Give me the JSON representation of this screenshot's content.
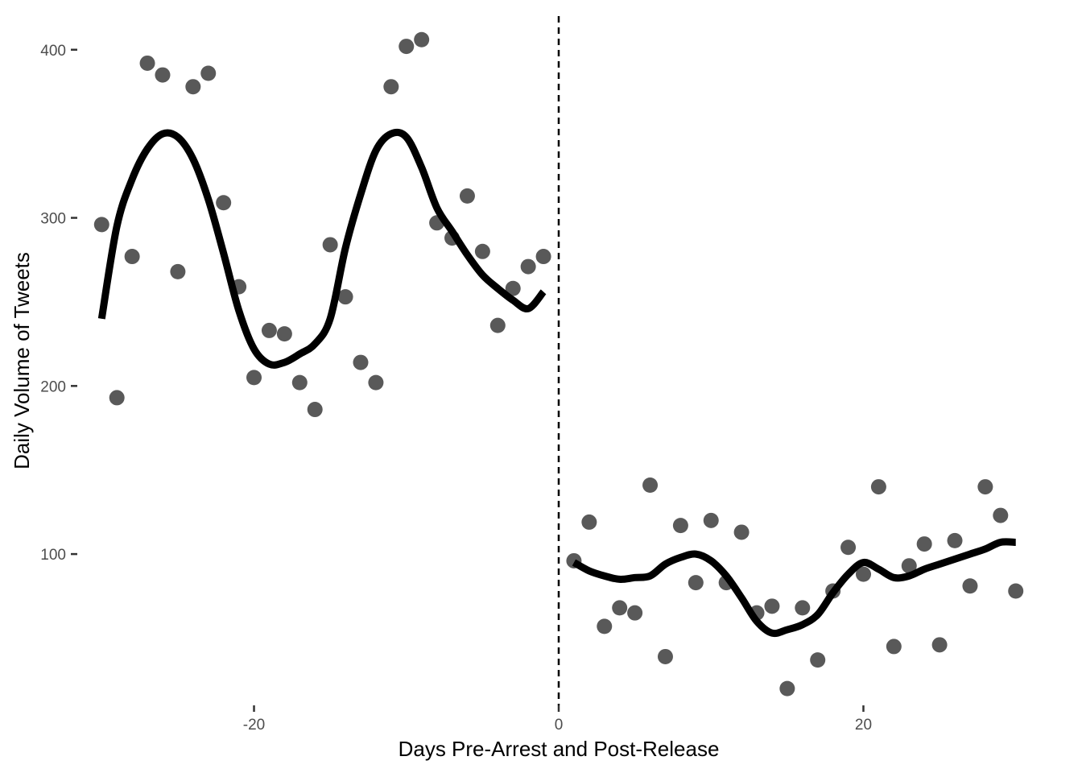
{
  "chart_data": {
    "type": "scatter",
    "xlabel": "Days Pre-Arrest and Post-Release",
    "ylabel": "Daily Volume of Tweets",
    "xlim": [
      -31.6,
      31.6
    ],
    "ylim": [
      10,
      420
    ],
    "x_ticks": [
      {
        "value": -20,
        "label": "-20"
      },
      {
        "value": 0,
        "label": "0"
      },
      {
        "value": 20,
        "label": "20"
      }
    ],
    "y_ticks": [
      {
        "value": 100,
        "label": "100"
      },
      {
        "value": 200,
        "label": "200"
      },
      {
        "value": 300,
        "label": "300"
      },
      {
        "value": 400,
        "label": "400"
      }
    ],
    "grid": false,
    "vline": {
      "x": 0,
      "style": "dashed",
      "color": "#000000"
    },
    "point_color": "#595959",
    "line_color": "#000000",
    "points": [
      {
        "x": -30,
        "y": 296
      },
      {
        "x": -29,
        "y": 193
      },
      {
        "x": -28,
        "y": 277
      },
      {
        "x": -27,
        "y": 392
      },
      {
        "x": -26,
        "y": 385
      },
      {
        "x": -25,
        "y": 268
      },
      {
        "x": -24,
        "y": 378
      },
      {
        "x": -23,
        "y": 386
      },
      {
        "x": -22,
        "y": 309
      },
      {
        "x": -21,
        "y": 259
      },
      {
        "x": -20,
        "y": 205
      },
      {
        "x": -19,
        "y": 233
      },
      {
        "x": -18,
        "y": 231
      },
      {
        "x": -17,
        "y": 202
      },
      {
        "x": -16,
        "y": 186
      },
      {
        "x": -15,
        "y": 284
      },
      {
        "x": -14,
        "y": 253
      },
      {
        "x": -13,
        "y": 214
      },
      {
        "x": -12,
        "y": 202
      },
      {
        "x": -11,
        "y": 378
      },
      {
        "x": -10,
        "y": 402
      },
      {
        "x": -9,
        "y": 406
      },
      {
        "x": -8,
        "y": 297
      },
      {
        "x": -7,
        "y": 288
      },
      {
        "x": -6,
        "y": 313
      },
      {
        "x": -5,
        "y": 280
      },
      {
        "x": -4,
        "y": 236
      },
      {
        "x": -3,
        "y": 258
      },
      {
        "x": -2,
        "y": 271
      },
      {
        "x": -1,
        "y": 277
      },
      {
        "x": 1,
        "y": 96
      },
      {
        "x": 2,
        "y": 119
      },
      {
        "x": 3,
        "y": 57
      },
      {
        "x": 4,
        "y": 68
      },
      {
        "x": 5,
        "y": 65
      },
      {
        "x": 6,
        "y": 141
      },
      {
        "x": 7,
        "y": 39
      },
      {
        "x": 8,
        "y": 117
      },
      {
        "x": 9,
        "y": 83
      },
      {
        "x": 10,
        "y": 120
      },
      {
        "x": 11,
        "y": 83
      },
      {
        "x": 12,
        "y": 113
      },
      {
        "x": 13,
        "y": 65
      },
      {
        "x": 14,
        "y": 69
      },
      {
        "x": 15,
        "y": 20
      },
      {
        "x": 16,
        "y": 68
      },
      {
        "x": 17,
        "y": 37
      },
      {
        "x": 18,
        "y": 78
      },
      {
        "x": 19,
        "y": 104
      },
      {
        "x": 20,
        "y": 88
      },
      {
        "x": 21,
        "y": 140
      },
      {
        "x": 22,
        "y": 45
      },
      {
        "x": 23,
        "y": 93
      },
      {
        "x": 24,
        "y": 106
      },
      {
        "x": 25,
        "y": 46
      },
      {
        "x": 26,
        "y": 108
      },
      {
        "x": 27,
        "y": 81
      },
      {
        "x": 28,
        "y": 140
      },
      {
        "x": 29,
        "y": 123
      },
      {
        "x": 30,
        "y": 78
      }
    ],
    "smooth_series": [
      {
        "x": [
          -30,
          -29,
          -28,
          -27,
          -26,
          -25,
          -24,
          -23,
          -22,
          -21,
          -20,
          -19,
          -18,
          -17,
          -16,
          -15,
          -14,
          -13,
          -12,
          -11,
          -10,
          -9,
          -8,
          -7,
          -6,
          -5,
          -4,
          -3,
          -2,
          -1
        ],
        "y": [
          240,
          295,
          323,
          341,
          350,
          348,
          335,
          311,
          279,
          245,
          222,
          213,
          214,
          219,
          225,
          240,
          282,
          314,
          340,
          350,
          348,
          330,
          306,
          292,
          278,
          266,
          258,
          251,
          246,
          256
        ]
      },
      {
        "x": [
          1,
          2,
          3,
          4,
          5,
          6,
          7,
          8,
          9,
          10,
          11,
          12,
          13,
          14,
          15,
          16,
          17,
          18,
          19,
          20,
          21,
          22,
          23,
          24,
          25,
          26,
          27,
          28,
          29,
          30
        ],
        "y": [
          95,
          90,
          87,
          85,
          86,
          87,
          94,
          98,
          100,
          96,
          87,
          74,
          60,
          53,
          55,
          58,
          64,
          77,
          88,
          95,
          91,
          86,
          87,
          91,
          94,
          97,
          100,
          103,
          107,
          107
        ]
      }
    ]
  }
}
